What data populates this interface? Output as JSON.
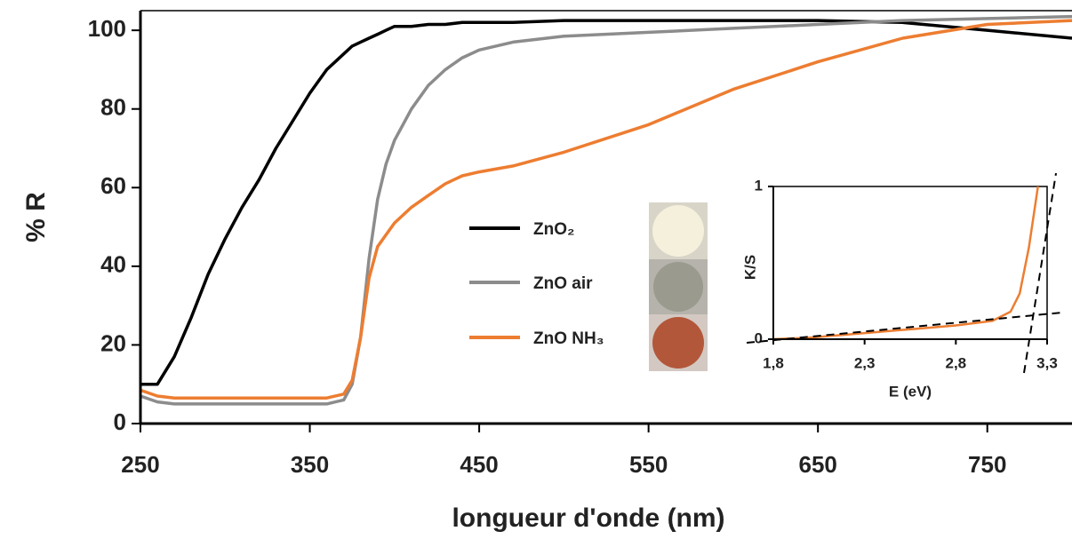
{
  "chart_data": [
    {
      "type": "line",
      "x_label": "longueur d'onde (nm)",
      "y_label": "% R",
      "x": [
        250,
        260,
        270,
        280,
        290,
        300,
        310,
        320,
        330,
        340,
        350,
        360,
        370,
        375,
        380,
        385,
        390,
        395,
        400,
        410,
        420,
        430,
        440,
        450,
        470,
        500,
        550,
        600,
        650,
        700,
        750,
        800
      ],
      "series": [
        {
          "name": "ZnO₂",
          "color": "#000000",
          "values": [
            10,
            10,
            17,
            27,
            38,
            47,
            55,
            62,
            70,
            77,
            84,
            90,
            94,
            96,
            97,
            98,
            99,
            100,
            101,
            101,
            101.5,
            101.5,
            102,
            102,
            102,
            102.5,
            102.5,
            102.5,
            102.5,
            102,
            100,
            98
          ]
        },
        {
          "name": "ZnO air",
          "color": "#8c8c8c",
          "values": [
            7,
            5.5,
            5,
            5,
            5,
            5,
            5,
            5,
            5,
            5,
            5,
            5,
            6,
            10,
            22,
            42,
            57,
            66,
            72,
            80,
            86,
            90,
            93,
            95,
            97,
            98.5,
            99.5,
            100.5,
            101.5,
            102.5,
            103,
            103.5
          ]
        },
        {
          "name": "ZnO NH₃",
          "color": "#ed7d31",
          "values": [
            8.5,
            7,
            6.5,
            6.5,
            6.5,
            6.5,
            6.5,
            6.5,
            6.5,
            6.5,
            6.5,
            6.5,
            7.5,
            11,
            22,
            37,
            45,
            48,
            51,
            55,
            58,
            61,
            63,
            64,
            65.5,
            69,
            76,
            85,
            92,
            98,
            101.5,
            102.5
          ]
        }
      ],
      "xlim": [
        250,
        800
      ],
      "xticks": [
        250,
        350,
        450,
        550,
        650,
        750
      ],
      "ylim": [
        0,
        105
      ],
      "yticks": [
        0,
        20,
        40,
        60,
        80,
        100
      ]
    },
    {
      "type": "line",
      "x_label": "E (eV)",
      "y_label": "K/S",
      "x": [
        1.8,
        2.0,
        2.3,
        2.6,
        2.8,
        3.0,
        3.1,
        3.15,
        3.2,
        3.25
      ],
      "series": [
        {
          "color": "#ed7d31",
          "values": [
            0,
            0.01,
            0.04,
            0.07,
            0.09,
            0.12,
            0.18,
            0.3,
            0.6,
            1.0
          ]
        }
      ],
      "xlim": [
        1.8,
        3.3
      ],
      "xticks": [
        {
          "value": 1.8,
          "label": "1,8"
        },
        {
          "value": 2.3,
          "label": "2,3"
        },
        {
          "value": 2.8,
          "label": "2,8"
        },
        {
          "value": 3.3,
          "label": "3,3"
        }
      ],
      "ylim": [
        0,
        1
      ],
      "yticks": [
        0,
        1
      ]
    }
  ]
}
